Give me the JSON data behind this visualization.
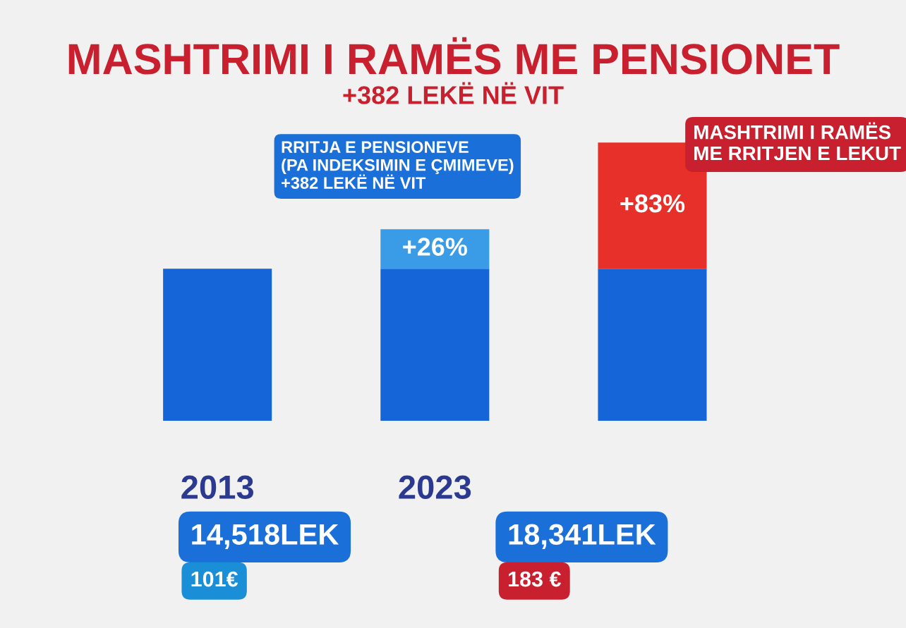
{
  "chart_data": {
    "type": "bar",
    "title": "MASHTRIMI I RAMËS ME PENSIONET",
    "subtitle": "+382 LEKË NË VIT",
    "categories": [
      "2013",
      "2023",
      null
    ],
    "stacked": true,
    "grid": false,
    "legend": false,
    "ylim": [
      0,
      190
    ],
    "tick_labels": "x",
    "series": [
      {
        "color": "#1565d8",
        "values": [
          100,
          100,
          100
        ]
      },
      {
        "color": "#3a9be6",
        "values": [
          null,
          26,
          null
        ],
        "value_labels": [
          null,
          "+26%",
          null
        ]
      },
      {
        "color": "#e8302a",
        "values": [
          null,
          null,
          83
        ],
        "value_labels": [
          null,
          null,
          "+83%"
        ]
      }
    ],
    "annotations": [
      "RRITJA E PENSIONEVE\n(PA INDEKSIMIN E ÇMIMEVE)\n+382 LEKË NË VIT",
      "MASHTRIMI I RAMËS\nME RRITJEN E LEKUT",
      "14,518LEK",
      "101€",
      "18,341LEK",
      "183 €"
    ]
  }
}
